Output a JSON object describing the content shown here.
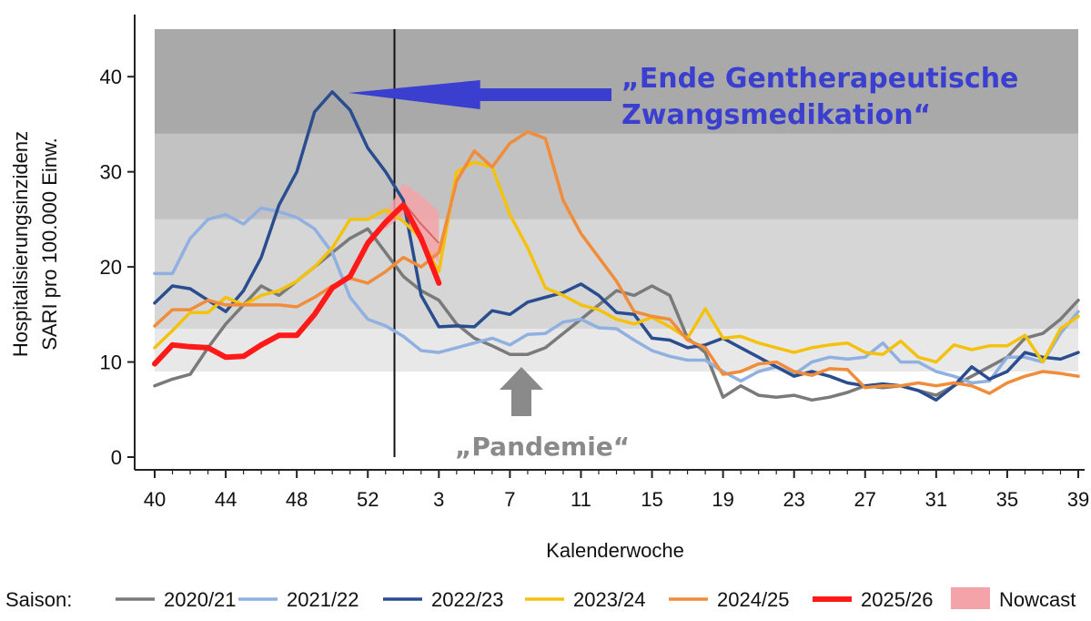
{
  "chart_data": {
    "type": "line",
    "xlabel": "Kalenderwoche",
    "ylabel_line1": "Hospitalisierungsinzidenz",
    "ylabel_line2": "SARI pro 100.000 Einw.",
    "ylim": [
      0,
      45
    ],
    "yticks": [
      0,
      10,
      20,
      30,
      40
    ],
    "x_index_range": [
      0,
      52
    ],
    "xtick_labels": [
      "40",
      "44",
      "48",
      "52",
      "3",
      "7",
      "11",
      "15",
      "19",
      "23",
      "27",
      "31",
      "35",
      "39"
    ],
    "xtick_positions": [
      0,
      4,
      8,
      12,
      16,
      20,
      24,
      28,
      32,
      36,
      40,
      44,
      48,
      52
    ],
    "bands": [
      {
        "from": 9,
        "to": 13.5,
        "color": "#e8e8e8"
      },
      {
        "from": 13.5,
        "to": 25,
        "color": "#d6d6d6"
      },
      {
        "from": 25,
        "to": 34,
        "color": "#c2c2c2"
      },
      {
        "from": 34,
        "to": 45,
        "color": "#a9a9a9"
      }
    ],
    "vline_x": 13.5,
    "legend_title": "Saison:",
    "series": [
      {
        "name": "2020/21",
        "color": "#7a7a7a",
        "width": 3.5,
        "x": [
          0,
          1,
          2,
          3,
          4,
          5,
          6,
          7,
          8,
          9,
          10,
          11,
          12,
          13,
          14,
          15,
          16,
          17,
          18,
          19,
          20,
          21,
          22,
          23,
          24,
          25,
          26,
          27,
          28,
          29,
          30,
          31,
          32,
          33,
          34,
          35,
          36,
          37,
          38,
          39,
          40,
          41,
          42,
          43,
          44,
          45,
          46,
          47,
          48,
          49,
          50,
          51,
          52
        ],
        "values": [
          7.5,
          8.2,
          8.7,
          11.5,
          14,
          16,
          18,
          17,
          18.5,
          20,
          21.5,
          23,
          24,
          21.5,
          19,
          17.5,
          16.5,
          14,
          12.5,
          11.7,
          10.8,
          10.8,
          11.5,
          13,
          14.5,
          16,
          17.5,
          17,
          18,
          17,
          12.5,
          11,
          6.3,
          7.5,
          6.5,
          6.3,
          6.5,
          6,
          6.3,
          6.8,
          7.5,
          7.3,
          7.5,
          7,
          6.5,
          7.5,
          8.5,
          9.5,
          10.5,
          12.5,
          13,
          14.5,
          16.5
        ]
      },
      {
        "name": "2021/22",
        "color": "#8fb0e0",
        "width": 3.5,
        "x": [
          0,
          1,
          2,
          3,
          4,
          5,
          6,
          7,
          8,
          9,
          10,
          11,
          12,
          13,
          14,
          15,
          16,
          17,
          18,
          19,
          20,
          21,
          22,
          23,
          24,
          25,
          26,
          27,
          28,
          29,
          30,
          31,
          32,
          33,
          34,
          35,
          36,
          37,
          38,
          39,
          40,
          41,
          42,
          43,
          44,
          45,
          46,
          47,
          48,
          49,
          50,
          51,
          52
        ],
        "values": [
          19.3,
          19.3,
          23,
          25,
          25.5,
          24.5,
          26.2,
          25.8,
          25.2,
          24,
          21.5,
          16.8,
          14.5,
          13.8,
          12.7,
          11.2,
          11,
          11.5,
          12,
          12.5,
          11.8,
          12.9,
          13,
          14.2,
          14.5,
          13.6,
          13.5,
          12.3,
          11.2,
          10.6,
          10.2,
          10.2,
          9,
          8,
          9,
          9.5,
          8.7,
          10,
          10.5,
          10.3,
          10.5,
          12,
          10,
          10,
          9,
          8.5,
          7.8,
          8,
          10.5,
          10.5,
          10,
          13,
          15.3
        ]
      },
      {
        "name": "2022/23",
        "color": "#2a4d8f",
        "width": 3.5,
        "x": [
          0,
          1,
          2,
          3,
          4,
          5,
          6,
          7,
          8,
          9,
          10,
          11,
          12,
          13,
          14,
          15,
          16,
          17,
          18,
          19,
          20,
          21,
          22,
          23,
          24,
          25,
          26,
          27,
          28,
          29,
          30,
          31,
          32,
          33,
          34,
          35,
          36,
          37,
          38,
          39,
          40,
          41,
          42,
          43,
          44,
          45,
          46,
          47,
          48,
          49,
          50,
          51,
          52
        ],
        "values": [
          16.2,
          18,
          17.7,
          16.5,
          15.3,
          17.5,
          21,
          26.5,
          30,
          36.3,
          38.4,
          36.5,
          32.5,
          30,
          27,
          17,
          13.7,
          13.8,
          13.7,
          15.4,
          15,
          16.3,
          16.8,
          17.3,
          18.2,
          17,
          15.2,
          15,
          12.5,
          12.3,
          11.5,
          11.8,
          12.5,
          11.5,
          10.5,
          9.5,
          8.5,
          9,
          8.5,
          7.8,
          7.5,
          7.7,
          7.5,
          7,
          6,
          7.5,
          9.5,
          8.2,
          9,
          11,
          10.5,
          10.3,
          11
        ]
      },
      {
        "name": "2023/24",
        "color": "#f4c20d",
        "width": 3.5,
        "x": [
          0,
          1,
          2,
          3,
          4,
          5,
          6,
          7,
          8,
          9,
          10,
          11,
          12,
          13,
          14,
          15,
          16,
          17,
          18,
          19,
          20,
          21,
          22,
          23,
          24,
          25,
          26,
          27,
          28,
          29,
          30,
          31,
          32,
          33,
          34,
          35,
          36,
          37,
          38,
          39,
          40,
          41,
          42,
          43,
          44,
          45,
          46,
          47,
          48,
          49,
          50,
          51,
          52
        ],
        "values": [
          11.5,
          13.3,
          15.2,
          15.2,
          16.8,
          16,
          17,
          17.5,
          18.5,
          20,
          22,
          25,
          25,
          26,
          24.8,
          23,
          19.5,
          30,
          31,
          30.5,
          25.5,
          22,
          17.8,
          17,
          16,
          15.5,
          14.5,
          14,
          14.7,
          13.7,
          12.5,
          15.6,
          12.5,
          12.7,
          12,
          11.5,
          11,
          11.5,
          11.8,
          12,
          11,
          10.8,
          12.2,
          10.5,
          10,
          11.8,
          11.3,
          11.7,
          11.7,
          12.8,
          10,
          13.5,
          14.8
        ]
      },
      {
        "name": "2024/25",
        "color": "#f08c3a",
        "width": 3.5,
        "x": [
          0,
          1,
          2,
          3,
          4,
          5,
          6,
          7,
          8,
          9,
          10,
          11,
          12,
          13,
          14,
          15,
          16,
          17,
          18,
          19,
          20,
          21,
          22,
          23,
          24,
          25,
          26,
          27,
          28,
          29,
          30,
          31,
          32,
          33,
          34,
          35,
          36,
          37,
          38,
          39,
          40,
          41,
          42,
          43,
          44,
          45,
          46,
          47,
          48,
          49,
          50,
          51,
          52
        ],
        "values": [
          13.8,
          15.5,
          15.5,
          16.5,
          16,
          16,
          16,
          16,
          15.8,
          16.8,
          18,
          18.8,
          18.3,
          19.5,
          21,
          20,
          21.5,
          29,
          32.2,
          30.5,
          33,
          34.2,
          33.5,
          27,
          23.5,
          21,
          18.5,
          15.3,
          14.8,
          14.5,
          12.3,
          11.5,
          8.7,
          9,
          9.8,
          10,
          9,
          8.6,
          9.3,
          9.2,
          7.3,
          7.5,
          7.5,
          7.8,
          7.5,
          7.8,
          7.5,
          6.7,
          7.8,
          8.5,
          9,
          8.8,
          8.5
        ]
      },
      {
        "name": "2025/26",
        "color": "#ff1a1a",
        "width": 6,
        "x": [
          0,
          1,
          2,
          3,
          4,
          5,
          6,
          7,
          8,
          9,
          10,
          11,
          12,
          13,
          14,
          15,
          16
        ],
        "values": [
          9.8,
          11.8,
          11.6,
          11.5,
          10.5,
          10.6,
          11.8,
          12.8,
          12.8,
          15,
          17.8,
          19,
          22.5,
          24.7,
          26.5,
          23,
          18.3
        ]
      }
    ],
    "nowcast": {
      "name": "Nowcast",
      "color": "#f4a3a8",
      "x": [
        13,
        14,
        15,
        16
      ],
      "lower": [
        24.0,
        25.5,
        22.3,
        20.5
      ],
      "upper": [
        25.5,
        28.8,
        27.5,
        25.8
      ],
      "median": [
        24.7,
        26.8,
        24.5,
        22.5
      ]
    },
    "annotations": {
      "blue_line1": "„Ende Gentherapeutische",
      "blue_line2": "Zwangsmedikation“",
      "blue_arrow_tip": {
        "x": 11,
        "y": 38.2
      },
      "blue_color": "#3b3fd0",
      "grey_text": "„Pandemie“",
      "grey_color": "#8a8a8a"
    }
  }
}
